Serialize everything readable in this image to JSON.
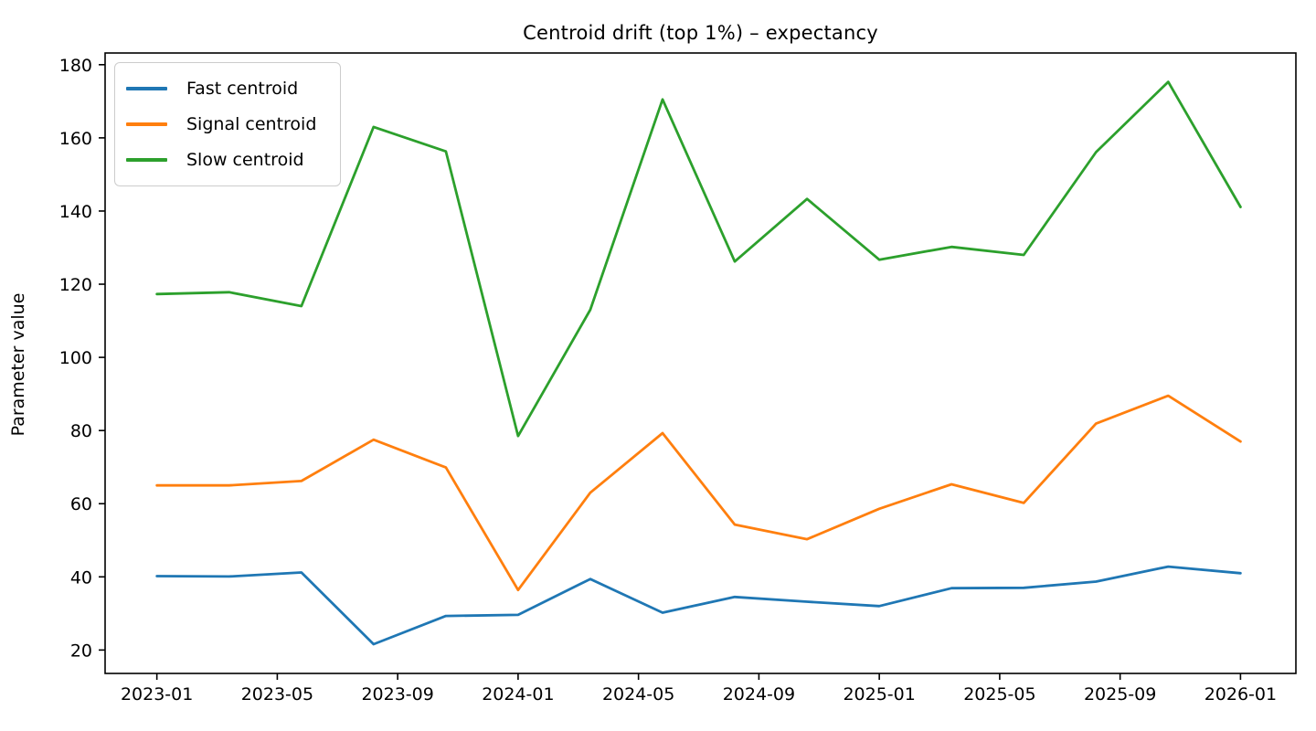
{
  "figure": {
    "title": "Centroid drift (top 1%) – expectancy"
  },
  "chart_data": {
    "type": "line",
    "title": "Centroid drift (top 1%) – expectancy",
    "xlabel": "",
    "ylabel": "Parameter value",
    "x_unit": "months since 2023-01 (16 evenly spaced points)",
    "x": [
      0,
      2.4,
      4.8,
      7.2,
      9.6,
      12.0,
      14.4,
      16.8,
      19.2,
      21.6,
      24.0,
      26.4,
      28.8,
      31.2,
      33.6,
      36.0
    ],
    "series": [
      {
        "name": "Fast centroid",
        "color": "#1f77b4",
        "values": [
          40.2,
          40.1,
          41.2,
          21.6,
          29.3,
          29.6,
          39.4,
          30.2,
          34.5,
          33.2,
          32.0,
          36.9,
          37.0,
          38.7,
          42.8,
          41.0
        ]
      },
      {
        "name": "Signal centroid",
        "color": "#ff7f0e",
        "values": [
          65.0,
          65.0,
          66.2,
          77.5,
          69.9,
          36.4,
          63.0,
          79.3,
          54.3,
          50.3,
          58.6,
          65.3,
          60.2,
          81.9,
          89.5,
          77.0
        ]
      },
      {
        "name": "Slow centroid",
        "color": "#2ca02c",
        "values": [
          117.3,
          117.8,
          114.0,
          163.0,
          156.3,
          78.5,
          113.0,
          170.5,
          126.2,
          143.3,
          126.7,
          130.2,
          128.0,
          156.1,
          175.3,
          141.1
        ]
      }
    ],
    "x_tick_months": [
      0,
      4,
      8,
      12,
      16,
      20,
      24,
      28,
      32,
      36
    ],
    "x_tick_labels": [
      "2023-01",
      "2023-05",
      "2023-09",
      "2024-01",
      "2024-05",
      "2024-09",
      "2025-01",
      "2025-05",
      "2025-09",
      "2026-01"
    ],
    "y_ticks": [
      20,
      40,
      60,
      80,
      100,
      120,
      140,
      160,
      180
    ],
    "y_tick_labels": [
      "20",
      "40",
      "60",
      "80",
      "100",
      "120",
      "140",
      "160",
      "180"
    ],
    "xlim_months": [
      -1.72,
      37.84
    ],
    "ylim": [
      13.6,
      183.2
    ],
    "legend_position": "upper left",
    "grid": false,
    "axis_color": "#000000",
    "line_width": 2.8
  }
}
